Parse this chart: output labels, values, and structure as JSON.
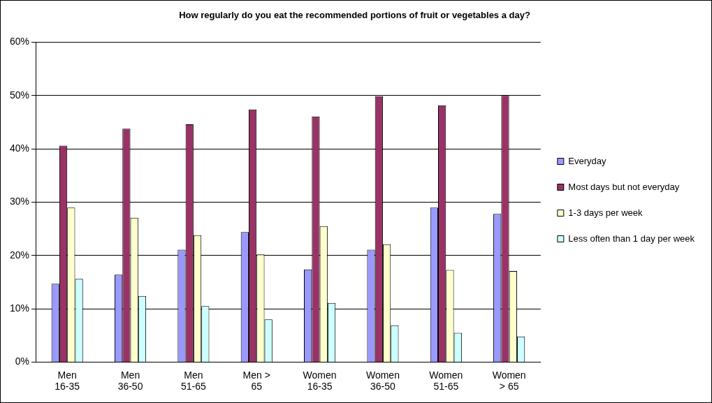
{
  "chart_data": {
    "type": "bar",
    "title": "How regularly do you eat the recommended portions of fruit or vegetables a day?",
    "categories": [
      "Men 16-35",
      "Men 36-50",
      "Men 51-65",
      "Men > 65",
      "Women 16-35",
      "Women 36-50",
      "Women 51-65",
      "Women > 65"
    ],
    "series": [
      {
        "name": "Everyday",
        "color": "#9999ff",
        "values": [
          14.7,
          16.4,
          21.1,
          24.4,
          17.4,
          21.1,
          29.0,
          27.8
        ]
      },
      {
        "name": "Most days but not everyday",
        "color": "#993366",
        "values": [
          40.6,
          43.8,
          44.6,
          47.4,
          46.1,
          49.9,
          48.2,
          50.1
        ]
      },
      {
        "name": "1-3 days per week",
        "color": "#ffffcc",
        "values": [
          29.0,
          27.1,
          23.8,
          20.2,
          25.5,
          22.1,
          17.3,
          17.1
        ]
      },
      {
        "name": "Less often than 1 day per week",
        "color": "#ccffff",
        "values": [
          15.6,
          12.4,
          10.5,
          8.0,
          11.1,
          6.9,
          5.5,
          4.8
        ]
      }
    ],
    "ylim": [
      0,
      60
    ],
    "yticks": [
      {
        "value": 0,
        "label": "0%"
      },
      {
        "value": 10,
        "label": "10%"
      },
      {
        "value": 20,
        "label": "20%"
      },
      {
        "value": 30,
        "label": "30%"
      },
      {
        "value": 40,
        "label": "40%"
      },
      {
        "value": 50,
        "label": "50%"
      },
      {
        "value": 60,
        "label": "60%"
      }
    ],
    "grid": "y",
    "legend": "right"
  }
}
